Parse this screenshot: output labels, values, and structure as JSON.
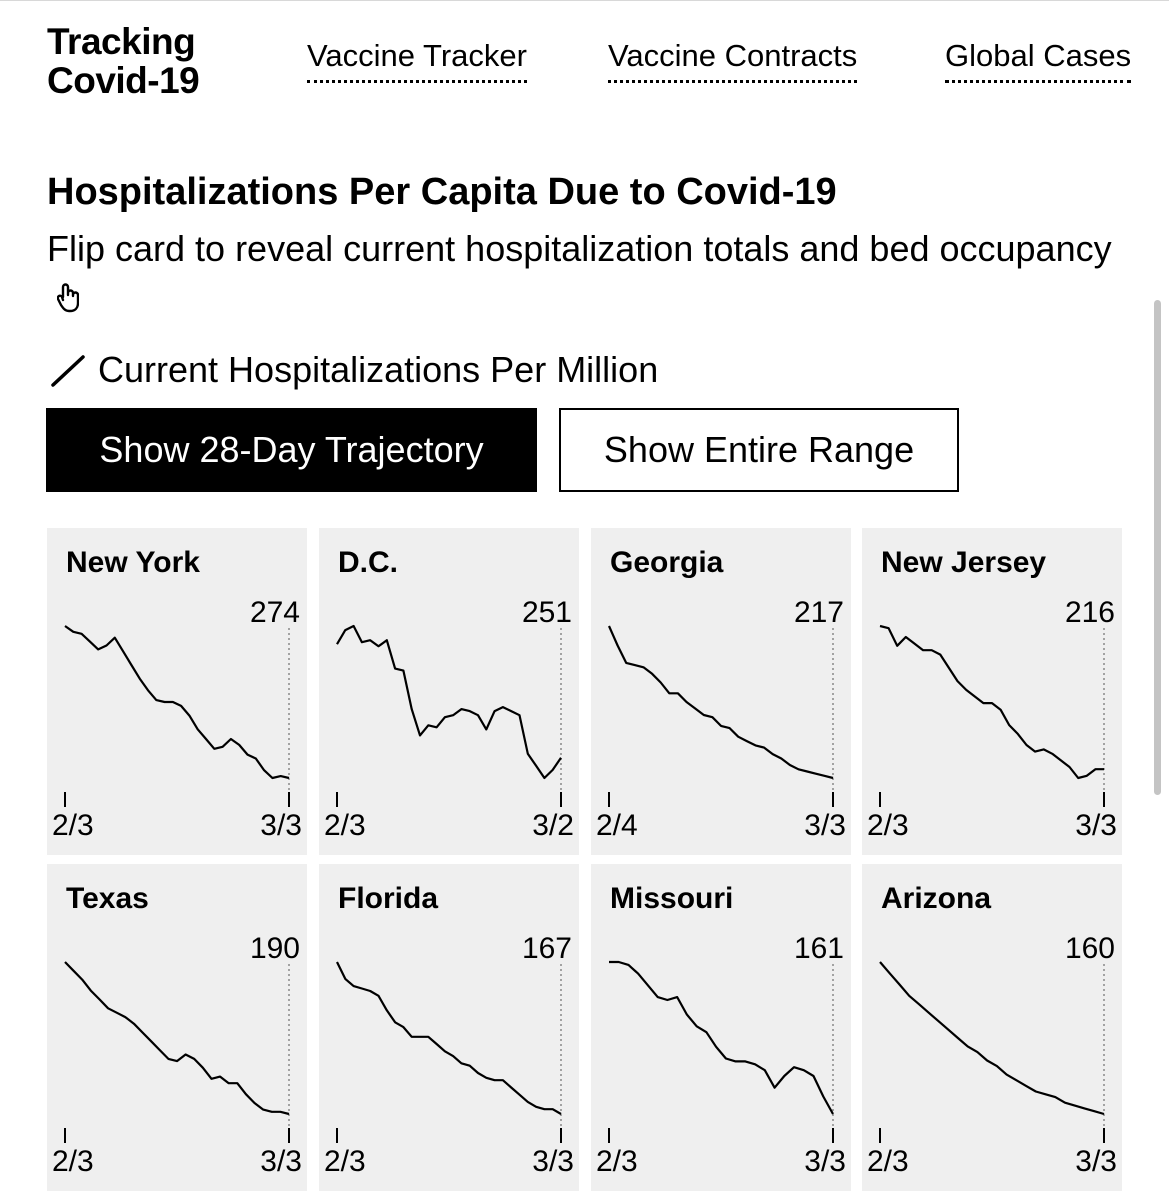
{
  "header": {
    "brand_line1": "Tracking",
    "brand_line2": "Covid-19",
    "nav": [
      "Vaccine Tracker",
      "Vaccine Contracts",
      "Global Cases"
    ]
  },
  "section": {
    "title": "Hospitalizations Per Capita Due to Covid-19",
    "subtitle": "Flip card to reveal current hospitalization totals and bed occupancy",
    "legend": "Current Hospitalizations Per Million"
  },
  "buttons": {
    "trajectory": "Show 28-Day Trajectory",
    "range": "Show Entire Range"
  },
  "chart_data": [
    {
      "type": "line",
      "title": "New York",
      "last_value": "274",
      "x_start": "2/3",
      "x_end": "3/3",
      "values": [
        274,
        271,
        270,
        266,
        262,
        264,
        268,
        261,
        254,
        247,
        241,
        236,
        235,
        235,
        233,
        228,
        221,
        216,
        211,
        212,
        216,
        213,
        208,
        206,
        200,
        196,
        197,
        196
      ]
    },
    {
      "type": "line",
      "title": "D.C.",
      "last_value": "251",
      "x_start": "2/3",
      "x_end": "3/2",
      "values": [
        251,
        258,
        260,
        252,
        253,
        250,
        253,
        239,
        238,
        219,
        206,
        211,
        210,
        215,
        216,
        219,
        218,
        216,
        209,
        218,
        220,
        218,
        216,
        197,
        191,
        185,
        189,
        195
      ]
    },
    {
      "type": "line",
      "title": "Georgia",
      "last_value": "217",
      "x_start": "2/4",
      "x_end": "3/3",
      "values": [
        217,
        208,
        200,
        199,
        198,
        195,
        191,
        186,
        186,
        182,
        179,
        176,
        175,
        171,
        170,
        166,
        164,
        162,
        161,
        158,
        156,
        153,
        151,
        150,
        149,
        148,
        147
      ]
    },
    {
      "type": "line",
      "title": "New Jersey",
      "last_value": "216",
      "x_start": "2/3",
      "x_end": "3/3",
      "values": [
        216,
        215,
        207,
        211,
        208,
        205,
        205,
        203,
        197,
        191,
        187,
        184,
        181,
        181,
        178,
        171,
        167,
        162,
        159,
        160,
        158,
        155,
        152,
        147,
        148,
        151,
        151
      ]
    },
    {
      "type": "line",
      "title": "Texas",
      "last_value": "190",
      "x_start": "2/3",
      "x_end": "3/3",
      "values": [
        190,
        186,
        182,
        177,
        173,
        169,
        167,
        165,
        162,
        158,
        154,
        150,
        146,
        145,
        148,
        146,
        142,
        137,
        138,
        135,
        135,
        130,
        126,
        123,
        122,
        122,
        121
      ]
    },
    {
      "type": "line",
      "title": "Florida",
      "last_value": "167",
      "x_start": "2/3",
      "x_end": "3/3",
      "values": [
        167,
        160,
        157,
        156,
        155,
        153,
        147,
        142,
        140,
        136,
        136,
        136,
        133,
        130,
        128,
        125,
        124,
        121,
        119,
        118,
        118,
        115,
        112,
        109,
        107,
        106,
        106,
        104
      ]
    },
    {
      "type": "line",
      "title": "Missouri",
      "last_value": "161",
      "x_start": "2/3",
      "x_end": "3/3",
      "values": [
        161,
        161,
        160,
        157,
        153,
        149,
        148,
        149,
        143,
        139,
        137,
        132,
        128,
        127,
        127,
        126,
        124,
        118,
        122,
        125,
        124,
        122,
        115,
        109
      ]
    },
    {
      "type": "line",
      "title": "Arizona",
      "last_value": "160",
      "x_start": "2/3",
      "x_end": "3/3",
      "values": [
        160,
        156,
        152,
        148,
        145,
        142,
        139,
        136,
        133,
        130,
        128,
        125,
        123,
        120,
        118,
        116,
        114,
        113,
        112,
        110,
        109,
        108,
        107,
        106
      ]
    }
  ]
}
